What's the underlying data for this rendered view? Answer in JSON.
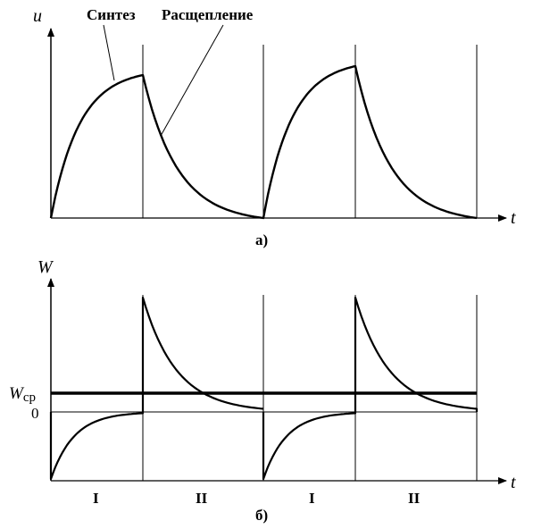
{
  "panel_a": {
    "y_axis_label": "u",
    "x_axis_label": "t",
    "caption": "а)",
    "annotations": {
      "synthesis": "Синтез",
      "splitting": "Расщепление"
    }
  },
  "panel_b": {
    "y_axis_label": "W",
    "x_axis_label": "t",
    "caption": "б)",
    "avg_label_main": "W",
    "avg_label_sub": "ср",
    "zero_label": "0",
    "phase_labels": [
      "I",
      "II",
      "I",
      "II"
    ]
  },
  "style": {
    "line_color": "#000000",
    "background": "#ffffff"
  }
}
